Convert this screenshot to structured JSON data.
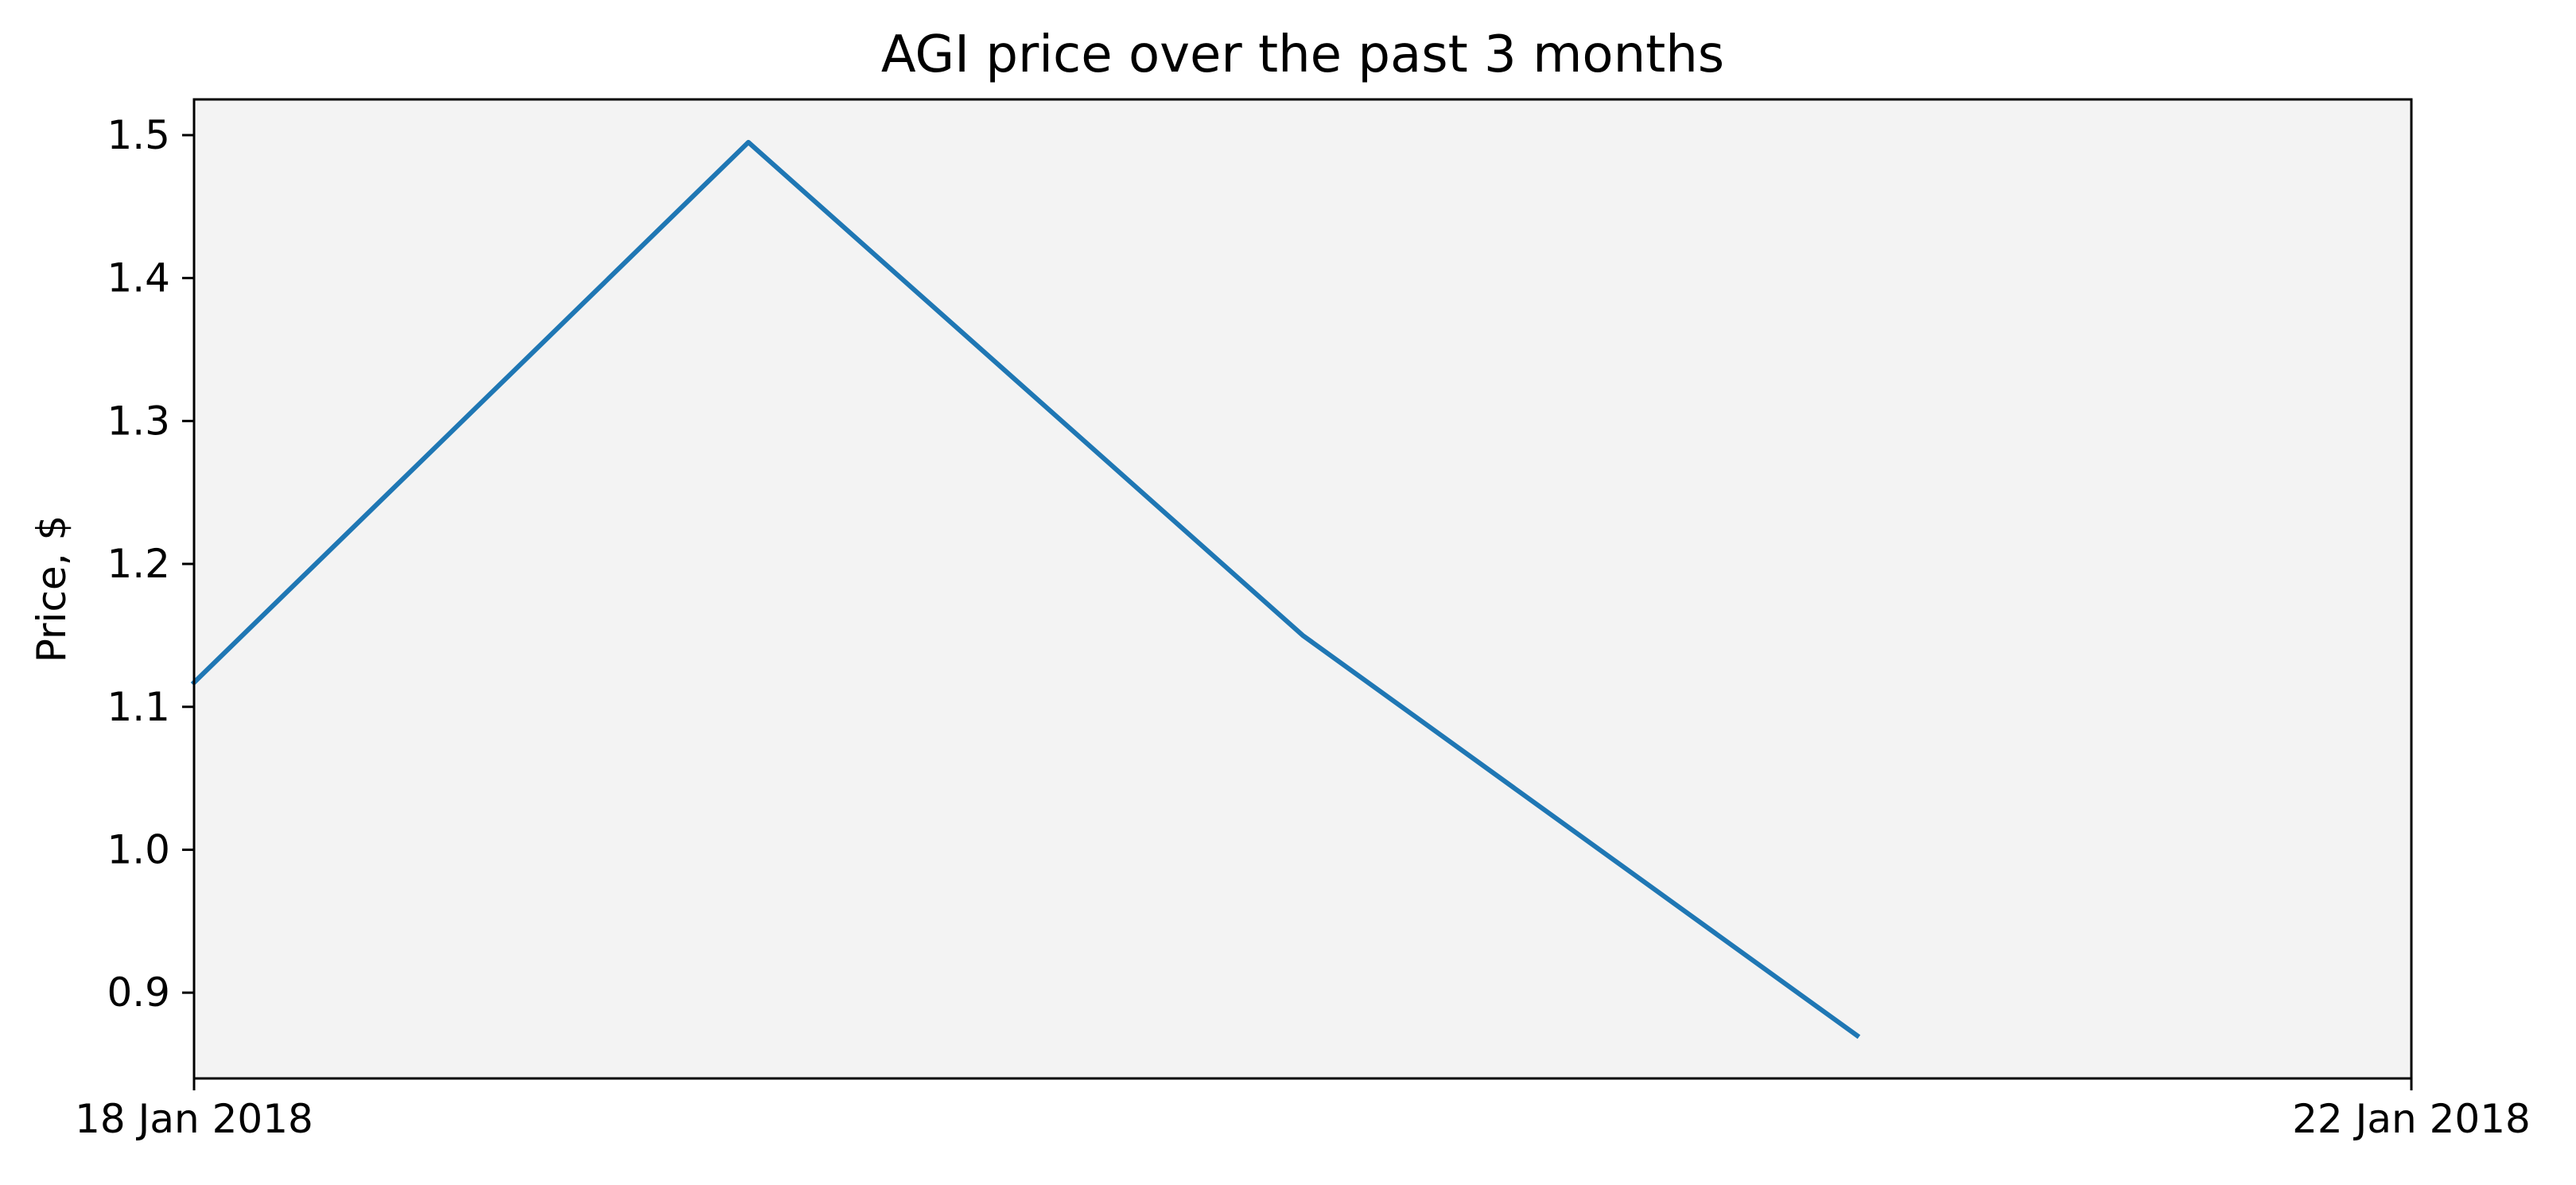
{
  "chart_data": {
    "type": "line",
    "title": "AGI price over the past 3 months",
    "xlabel": "",
    "ylabel": "Price, $",
    "x_ticks": [
      "18 Jan 2018",
      "22 Jan 2018"
    ],
    "y_ticks": [
      "0.9",
      "1.0",
      "1.1",
      "1.2",
      "1.3",
      "1.4",
      "1.5"
    ],
    "ylim": [
      0.84,
      1.525
    ],
    "grid": false,
    "series": [
      {
        "color": "#1f77b4",
        "points": [
          {
            "x": "2018-01-18",
            "y": 1.117
          },
          {
            "x": "2018-01-19",
            "y": 1.495
          },
          {
            "x": "2018-01-20",
            "y": 1.15
          },
          {
            "x": "2018-01-21",
            "y": 0.87
          }
        ]
      }
    ],
    "plot_background": "#f3f3f3",
    "axis_color": "#000000"
  }
}
